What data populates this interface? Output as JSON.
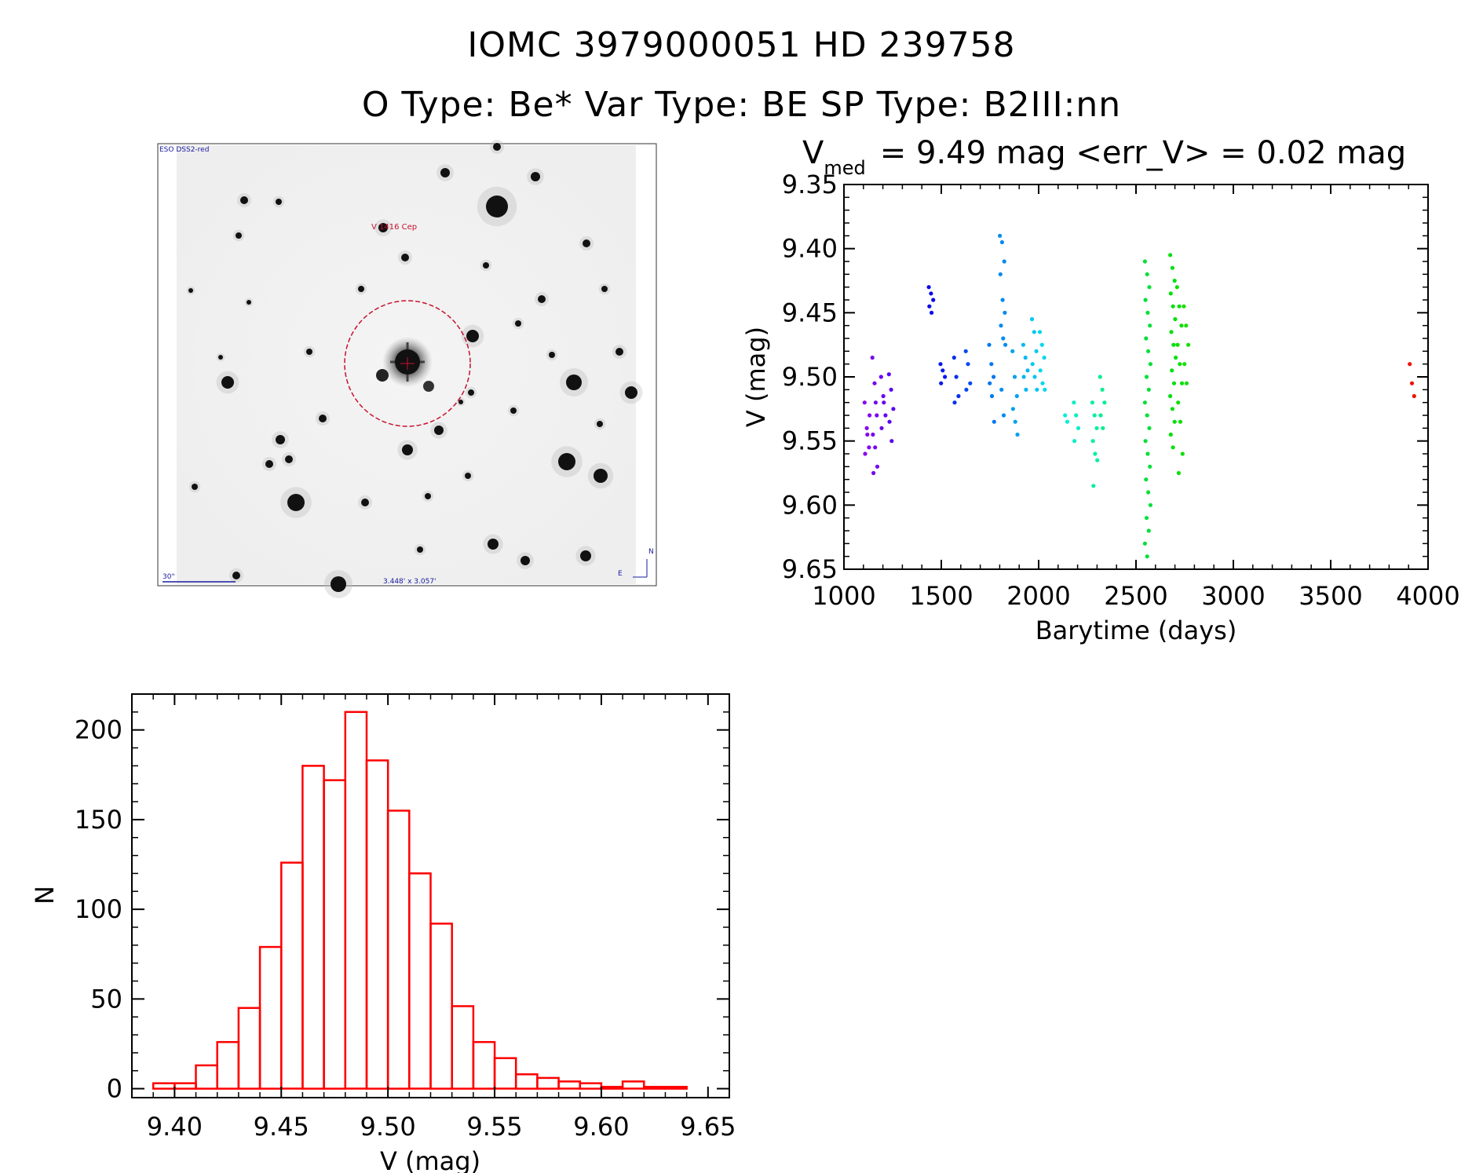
{
  "header": {
    "title": "IOMC 3979000051    HD 239758",
    "subtitle": "O Type: Be*  Var Type: BE  SP Type: B2III:nn"
  },
  "finder_image": {
    "survey_label": "ESO DSS2-red",
    "object_label": "V 1416 Cep",
    "scale_label": "30\"",
    "fov_label": "3.448' x 3.057'",
    "north_label": "N",
    "east_label": "E"
  },
  "colors": {
    "histogram": "#ff0000",
    "finder_circle": "#c8102e",
    "finder_labels": "#1a1aa0"
  },
  "chart_data": [
    {
      "type": "scatter",
      "title_main": "V",
      "title_sub": "med",
      "title_rest": "= 9.49 mag <err_V> = 0.02 mag",
      "xlabel": "Barytime (days)",
      "ylabel": "V (mag)",
      "xlim": [
        1000,
        4000
      ],
      "ylim": [
        9.35,
        9.65
      ],
      "y_inverted": true,
      "xticks": [
        1000,
        1500,
        2000,
        2500,
        3000,
        3500,
        4000
      ],
      "yticks": [
        "9.35",
        "9.40",
        "9.45",
        "9.50",
        "9.55",
        "9.60",
        "9.65"
      ],
      "color_scale": "rainbow by time",
      "groups": [
        {
          "x": 1120,
          "y": [
            9.52,
            9.54,
            9.555,
            9.56,
            9.545,
            9.53
          ]
        },
        {
          "x": 1160,
          "y": [
            9.485,
            9.505,
            9.53,
            9.545,
            9.555,
            9.57,
            9.575,
            9.52
          ]
        },
        {
          "x": 1205,
          "y": [
            9.5,
            9.515,
            9.53,
            9.54,
            9.52
          ]
        },
        {
          "x": 1245,
          "y": [
            9.498,
            9.51,
            9.525,
            9.535,
            9.55
          ]
        },
        {
          "x": 1450,
          "y": [
            9.43,
            9.435,
            9.44,
            9.445,
            9.45
          ]
        },
        {
          "x": 1510,
          "y": [
            9.49,
            9.495,
            9.5,
            9.505
          ]
        },
        {
          "x": 1580,
          "y": [
            9.485,
            9.5,
            9.515,
            9.52
          ]
        },
        {
          "x": 1640,
          "y": [
            9.48,
            9.49,
            9.505,
            9.51
          ]
        },
        {
          "x": 1760,
          "y": [
            9.475,
            9.49,
            9.5,
            9.505,
            9.515,
            9.535
          ]
        },
        {
          "x": 1815,
          "y": [
            9.39,
            9.395,
            9.41,
            9.42,
            9.44,
            9.45,
            9.46,
            9.47,
            9.475,
            9.51,
            9.53
          ]
        },
        {
          "x": 1880,
          "y": [
            9.48,
            9.5,
            9.515,
            9.525,
            9.535,
            9.545
          ]
        },
        {
          "x": 1935,
          "y": [
            9.475,
            9.485,
            9.495,
            9.5,
            9.51
          ]
        },
        {
          "x": 1980,
          "y": [
            9.455,
            9.465,
            9.48,
            9.49,
            9.5,
            9.51
          ]
        },
        {
          "x": 2020,
          "y": [
            9.465,
            9.475,
            9.485,
            9.495,
            9.505,
            9.51
          ]
        },
        {
          "x": 2150,
          "y": [
            9.53,
            9.535
          ]
        },
        {
          "x": 2195,
          "y": [
            9.52,
            9.53,
            9.54,
            9.55
          ]
        },
        {
          "x": 2290,
          "y": [
            9.52,
            9.53,
            9.54,
            9.55,
            9.56,
            9.565,
            9.585
          ]
        },
        {
          "x": 2330,
          "y": [
            9.5,
            9.51,
            9.52,
            9.53,
            9.54
          ]
        },
        {
          "x": 2560,
          "y": [
            9.41,
            9.42,
            9.43,
            9.44,
            9.45,
            9.46,
            9.47,
            9.48,
            9.49,
            9.5,
            9.51,
            9.52,
            9.53,
            9.54,
            9.55,
            9.56,
            9.57,
            9.58,
            9.59,
            9.6,
            9.61,
            9.62,
            9.63,
            9.64
          ]
        },
        {
          "x": 2690,
          "y": [
            9.405,
            9.415,
            9.425,
            9.435,
            9.445,
            9.455,
            9.465,
            9.475,
            9.485,
            9.495,
            9.505,
            9.515,
            9.525,
            9.535,
            9.545,
            9.555
          ]
        },
        {
          "x": 2725,
          "y": [
            9.43,
            9.445,
            9.46,
            9.475,
            9.49,
            9.505,
            9.52,
            9.535,
            9.56,
            9.575
          ]
        },
        {
          "x": 2760,
          "y": [
            9.445,
            9.46,
            9.475,
            9.49,
            9.505
          ]
        },
        {
          "x": 3920,
          "y": [
            9.49,
            9.505,
            9.515
          ]
        }
      ]
    },
    {
      "type": "bar",
      "xlabel": "V (mag)",
      "ylabel": "N",
      "xlim": [
        9.38,
        9.66
      ],
      "ylim": [
        -5,
        220
      ],
      "xticks": [
        "9.40",
        "9.45",
        "9.50",
        "9.55",
        "9.60",
        "9.65"
      ],
      "yticks": [
        "0",
        "50",
        "100",
        "150",
        "200"
      ],
      "bin_start": 9.39,
      "bin_width": 0.01,
      "values": [
        3,
        3,
        13,
        26,
        45,
        79,
        126,
        180,
        172,
        210,
        183,
        155,
        120,
        92,
        46,
        26,
        17,
        8,
        6,
        4,
        3,
        1,
        4,
        1,
        1
      ]
    }
  ]
}
